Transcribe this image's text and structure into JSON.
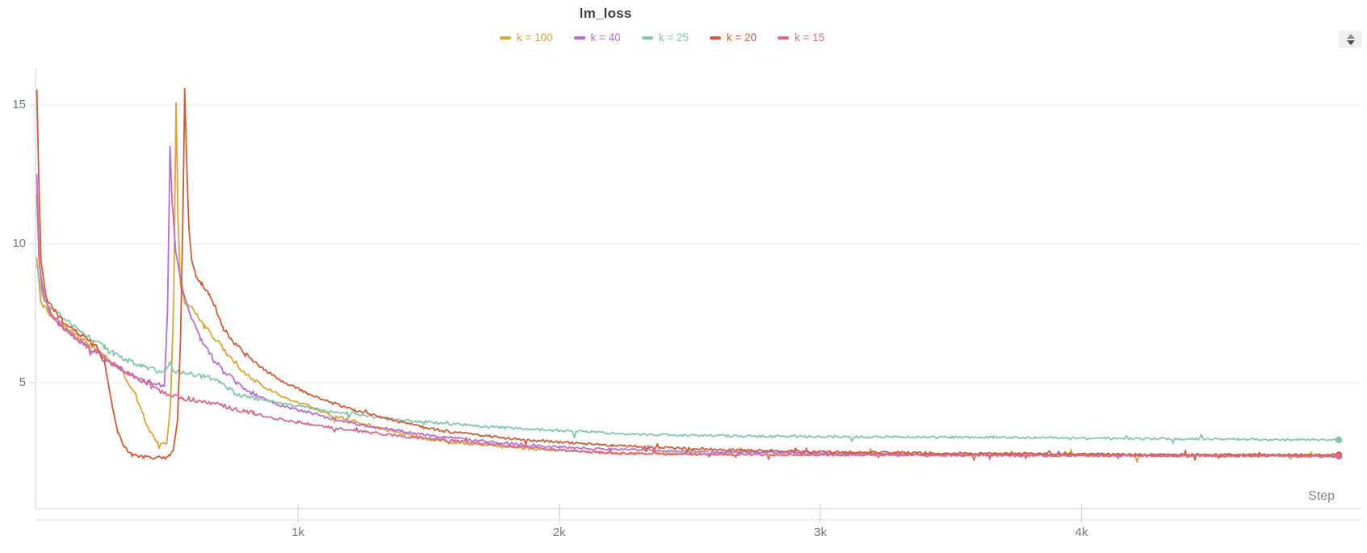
{
  "chart_data": {
    "type": "line",
    "title": "lm_loss",
    "xlabel": "Step",
    "legend_position": "top-center",
    "grid": "horizontal-only",
    "x_ticks": [
      {
        "value": 1000,
        "label": "1k"
      },
      {
        "value": 2000,
        "label": "2k"
      },
      {
        "value": 3000,
        "label": "3k"
      },
      {
        "value": 4000,
        "label": "4k"
      }
    ],
    "y_ticks": [
      {
        "value": 5,
        "label": "5"
      },
      {
        "value": 10,
        "label": "10"
      },
      {
        "value": 15,
        "label": "15"
      }
    ],
    "xlim": [
      -5,
      5071
    ],
    "ylim": [
      0.465,
      16.34
    ],
    "colors": {
      "axis": "#e7e7e9",
      "grid": "#eeeef0",
      "tick": "#d8d8dc",
      "tick_label": "#76767e",
      "title": "#3b3b44",
      "xlabel": "#87878f",
      "stepper_bg": "#f0f0f0"
    },
    "series": [
      {
        "name": "k = 100",
        "color": "#d9a43b",
        "end_marker": true,
        "keypoints": [
          [
            0,
            9.5
          ],
          [
            15,
            7.9
          ],
          [
            45,
            7.5
          ],
          [
            90,
            7.15
          ],
          [
            140,
            6.8
          ],
          [
            200,
            6.35
          ],
          [
            260,
            5.95
          ],
          [
            320,
            5.5
          ],
          [
            380,
            4.5
          ],
          [
            420,
            3.5
          ],
          [
            450,
            2.98
          ],
          [
            477,
            2.78
          ],
          [
            497,
            2.8
          ],
          [
            512,
            4.2
          ],
          [
            524,
            8.0
          ],
          [
            533,
            15.1
          ],
          [
            540,
            11.0
          ],
          [
            550,
            8.5
          ],
          [
            565,
            7.95
          ],
          [
            600,
            7.6
          ],
          [
            640,
            7.05
          ],
          [
            690,
            6.5
          ],
          [
            740,
            5.9
          ],
          [
            800,
            5.35
          ],
          [
            870,
            4.85
          ],
          [
            950,
            4.45
          ],
          [
            1034,
            4.2
          ],
          [
            1120,
            3.85
          ],
          [
            1220,
            3.6
          ],
          [
            1340,
            3.3
          ],
          [
            1480,
            3.0
          ],
          [
            1600,
            2.85
          ],
          [
            1750,
            2.72
          ],
          [
            1900,
            2.62
          ],
          [
            2050,
            2.54
          ],
          [
            2200,
            2.47
          ],
          [
            2450,
            2.44
          ],
          [
            2700,
            2.42
          ],
          [
            3000,
            2.41
          ],
          [
            3400,
            2.4
          ],
          [
            3800,
            2.38
          ],
          [
            4200,
            2.37
          ],
          [
            4600,
            2.36
          ],
          [
            4985,
            2.36
          ]
        ]
      },
      {
        "name": "k = 40",
        "color": "#b76fcd",
        "end_marker": true,
        "keypoints": [
          [
            0,
            12.5
          ],
          [
            10,
            9.2
          ],
          [
            30,
            8.0
          ],
          [
            60,
            7.45
          ],
          [
            100,
            7.0
          ],
          [
            150,
            6.6
          ],
          [
            200,
            6.25
          ],
          [
            260,
            5.85
          ],
          [
            320,
            5.5
          ],
          [
            380,
            5.18
          ],
          [
            440,
            4.97
          ],
          [
            488,
            4.88
          ],
          [
            500,
            7.5
          ],
          [
            510,
            13.5
          ],
          [
            518,
            11.5
          ],
          [
            532,
            9.7
          ],
          [
            558,
            8.35
          ],
          [
            590,
            7.35
          ],
          [
            625,
            6.6
          ],
          [
            670,
            5.95
          ],
          [
            720,
            5.4
          ],
          [
            765,
            5.0
          ],
          [
            820,
            4.65
          ],
          [
            890,
            4.35
          ],
          [
            960,
            4.1
          ],
          [
            1034,
            3.95
          ],
          [
            1130,
            3.7
          ],
          [
            1250,
            3.45
          ],
          [
            1400,
            3.25
          ],
          [
            1500,
            3.1
          ],
          [
            1650,
            2.95
          ],
          [
            1820,
            2.8
          ],
          [
            2000,
            2.68
          ],
          [
            2200,
            2.6
          ],
          [
            2450,
            2.53
          ],
          [
            2700,
            2.49
          ],
          [
            3000,
            2.46
          ],
          [
            3400,
            2.43
          ],
          [
            3800,
            2.41
          ],
          [
            4200,
            2.4
          ],
          [
            4600,
            2.39
          ],
          [
            4985,
            2.38
          ]
        ]
      },
      {
        "name": "k = 25",
        "color": "#86c6ae",
        "end_marker": true,
        "keypoints": [
          [
            0,
            9.3
          ],
          [
            20,
            8.15
          ],
          [
            50,
            7.7
          ],
          [
            90,
            7.42
          ],
          [
            140,
            7.08
          ],
          [
            200,
            6.65
          ],
          [
            260,
            6.3
          ],
          [
            292,
            6.07
          ],
          [
            330,
            5.88
          ],
          [
            400,
            5.6
          ],
          [
            460,
            5.42
          ],
          [
            492,
            5.35
          ],
          [
            508,
            5.72
          ],
          [
            520,
            5.45
          ],
          [
            560,
            5.35
          ],
          [
            640,
            5.22
          ],
          [
            700,
            5.05
          ],
          [
            760,
            4.6
          ],
          [
            850,
            4.4
          ],
          [
            940,
            4.25
          ],
          [
            1034,
            4.1
          ],
          [
            1150,
            3.95
          ],
          [
            1280,
            3.78
          ],
          [
            1476,
            3.6
          ],
          [
            1600,
            3.5
          ],
          [
            1750,
            3.4
          ],
          [
            1900,
            3.32
          ],
          [
            2100,
            3.24
          ],
          [
            2210,
            3.16
          ],
          [
            2400,
            3.12
          ],
          [
            2700,
            3.08
          ],
          [
            3000,
            3.06
          ],
          [
            3300,
            3.04
          ],
          [
            3662,
            3.03
          ],
          [
            4000,
            3.0
          ],
          [
            4300,
            2.98
          ],
          [
            4600,
            2.96
          ],
          [
            4985,
            2.94
          ]
        ]
      },
      {
        "name": "k = 20",
        "color": "#cd5d38",
        "end_marker": true,
        "keypoints": [
          [
            0,
            15.55
          ],
          [
            7,
            12.5
          ],
          [
            16,
            9.4
          ],
          [
            35,
            8.1
          ],
          [
            65,
            7.6
          ],
          [
            100,
            7.2
          ],
          [
            145,
            6.85
          ],
          [
            195,
            6.55
          ],
          [
            240,
            6.2
          ],
          [
            262,
            5.6
          ],
          [
            270,
            5.15
          ],
          [
            290,
            4.1
          ],
          [
            310,
            3.2
          ],
          [
            335,
            2.65
          ],
          [
            365,
            2.42
          ],
          [
            410,
            2.3
          ],
          [
            460,
            2.27
          ],
          [
            505,
            2.33
          ],
          [
            522,
            2.55
          ],
          [
            538,
            3.6
          ],
          [
            550,
            6.5
          ],
          [
            560,
            11.5
          ],
          [
            566,
            15.6
          ],
          [
            573,
            13.2
          ],
          [
            582,
            10.6
          ],
          [
            593,
            9.4
          ],
          [
            610,
            8.85
          ],
          [
            632,
            8.55
          ],
          [
            658,
            8.25
          ],
          [
            685,
            7.7
          ],
          [
            712,
            7.0
          ],
          [
            750,
            6.5
          ],
          [
            800,
            6.0
          ],
          [
            860,
            5.55
          ],
          [
            930,
            5.1
          ],
          [
            1000,
            4.8
          ],
          [
            1034,
            4.6
          ],
          [
            1120,
            4.3
          ],
          [
            1220,
            4.0
          ],
          [
            1340,
            3.7
          ],
          [
            1476,
            3.4
          ],
          [
            1600,
            3.2
          ],
          [
            1750,
            3.05
          ],
          [
            1900,
            2.93
          ],
          [
            2050,
            2.83
          ],
          [
            2200,
            2.74
          ],
          [
            2400,
            2.66
          ],
          [
            2650,
            2.58
          ],
          [
            2900,
            2.53
          ],
          [
            3200,
            2.49
          ],
          [
            3600,
            2.45
          ],
          [
            4000,
            2.43
          ],
          [
            4400,
            2.41
          ],
          [
            4985,
            2.4
          ]
        ]
      },
      {
        "name": "k = 15",
        "color": "#d76a92",
        "end_marker": true,
        "keypoints": [
          [
            0,
            11.8
          ],
          [
            8,
            9.5
          ],
          [
            22,
            8.3
          ],
          [
            50,
            7.5
          ],
          [
            85,
            7.1
          ],
          [
            135,
            6.72
          ],
          [
            190,
            6.32
          ],
          [
            250,
            5.97
          ],
          [
            292,
            5.66
          ],
          [
            350,
            5.35
          ],
          [
            410,
            5.05
          ],
          [
            447,
            4.8
          ],
          [
            490,
            4.62
          ],
          [
            523,
            4.5
          ],
          [
            560,
            4.45
          ],
          [
            632,
            4.33
          ],
          [
            700,
            4.22
          ],
          [
            756,
            4.05
          ],
          [
            830,
            3.9
          ],
          [
            910,
            3.72
          ],
          [
            1000,
            3.58
          ],
          [
            1100,
            3.42
          ],
          [
            1220,
            3.27
          ],
          [
            1350,
            3.12
          ],
          [
            1476,
            3.0
          ],
          [
            1600,
            2.9
          ],
          [
            1750,
            2.77
          ],
          [
            1900,
            2.65
          ],
          [
            2050,
            2.55
          ],
          [
            2200,
            2.46
          ],
          [
            2400,
            2.43
          ],
          [
            2700,
            2.41
          ],
          [
            3100,
            2.39
          ],
          [
            3500,
            2.38
          ],
          [
            4000,
            2.37
          ],
          [
            4500,
            2.36
          ],
          [
            4985,
            2.35
          ]
        ]
      }
    ]
  }
}
